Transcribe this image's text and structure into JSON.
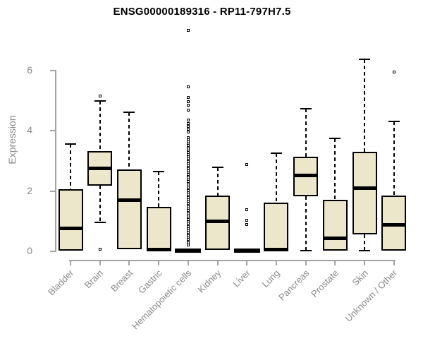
{
  "chart_data": {
    "type": "boxplot",
    "title": "ENSG00000189316 - RP11-797H7.5",
    "ylabel": "Expression",
    "xlabel": "",
    "ylim": [
      0,
      6
    ],
    "yticks": [
      0,
      2,
      4,
      6
    ],
    "grid": false,
    "legend": "none",
    "categories": [
      "Bladder",
      "Brain",
      "Breast",
      "Gastric",
      "Hematopoietic cells",
      "Kidney",
      "Liver",
      "Lung",
      "Pancreas",
      "Prostate",
      "Skin",
      "Unknown / Other"
    ],
    "series": [
      {
        "name": "Bladder",
        "whisker_low": 0.02,
        "q1": 0.02,
        "median": 0.75,
        "q3": 2.06,
        "whisker_high": 3.55,
        "outliers": []
      },
      {
        "name": "Brain",
        "whisker_low": 0.95,
        "q1": 2.18,
        "median": 2.76,
        "q3": 3.32,
        "whisker_high": 5.0,
        "outliers": [
          5.15,
          0.07
        ]
      },
      {
        "name": "Breast",
        "whisker_low": 0.07,
        "q1": 0.07,
        "median": 1.69,
        "q3": 2.72,
        "whisker_high": 4.62,
        "outliers": []
      },
      {
        "name": "Gastric",
        "whisker_low": 0.02,
        "q1": 0.02,
        "median": 0.06,
        "q3": 1.47,
        "whisker_high": 2.64,
        "outliers": []
      },
      {
        "name": "Hematopoietic cells",
        "whisker_low": 0.0,
        "q1": 0.0,
        "median": 0.02,
        "q3": 0.04,
        "whisker_high": 0.04,
        "outliers": [
          0.22,
          0.28,
          0.34,
          0.4,
          0.46,
          0.52,
          0.58,
          0.64,
          0.7,
          0.76,
          0.82,
          0.88,
          0.94,
          1.0,
          1.06,
          1.12,
          1.18,
          1.24,
          1.3,
          1.36,
          1.42,
          1.48,
          1.54,
          1.6,
          1.66,
          1.72,
          1.78,
          1.84,
          1.9,
          1.96,
          2.02,
          2.08,
          2.14,
          2.2,
          2.26,
          2.32,
          2.38,
          2.44,
          2.5,
          2.56,
          2.62,
          2.68,
          2.74,
          2.8,
          2.86,
          2.92,
          2.98,
          3.04,
          3.1,
          3.16,
          3.22,
          3.28,
          3.34,
          3.4,
          3.46,
          3.52,
          3.58,
          3.64,
          3.7,
          3.76,
          3.96,
          4.05,
          4.15,
          4.25,
          4.35,
          4.68,
          4.85,
          4.96,
          5.1,
          5.46,
          7.33
        ]
      },
      {
        "name": "Kidney",
        "whisker_low": 0.05,
        "q1": 0.05,
        "median": 0.99,
        "q3": 1.85,
        "whisker_high": 2.78,
        "outliers": []
      },
      {
        "name": "Liver",
        "whisker_low": 0.0,
        "q1": 0.0,
        "median": 0.02,
        "q3": 0.04,
        "whisker_high": 0.04,
        "outliers": [
          2.87,
          1.38,
          1.03,
          0.9
        ]
      },
      {
        "name": "Lung",
        "whisker_low": 0.02,
        "q1": 0.02,
        "median": 0.07,
        "q3": 1.61,
        "whisker_high": 3.25,
        "outliers": []
      },
      {
        "name": "Pancreas",
        "whisker_low": 0.02,
        "q1": 1.83,
        "median": 2.52,
        "q3": 3.14,
        "whisker_high": 4.72,
        "outliers": []
      },
      {
        "name": "Prostate",
        "whisker_low": 0.02,
        "q1": 0.02,
        "median": 0.43,
        "q3": 1.72,
        "whisker_high": 3.74,
        "outliers": []
      },
      {
        "name": "Skin",
        "whisker_low": 0.02,
        "q1": 0.56,
        "median": 2.1,
        "q3": 3.3,
        "whisker_high": 6.38,
        "outliers": []
      },
      {
        "name": "Unknown / Other",
        "whisker_low": 0.02,
        "q1": 0.02,
        "median": 0.87,
        "q3": 1.85,
        "whisker_high": 4.3,
        "outliers": [
          5.95
        ]
      }
    ],
    "colors": {
      "box_fill": "#ECE7CB",
      "box_border": "#000000",
      "median": "#000000",
      "whisker": "#000000",
      "outlier": "#000000",
      "axis_line": "#A3A3A3",
      "axis_text": "#8A8A8A",
      "title_text": "#000000",
      "background": "#FFFFFF"
    }
  }
}
